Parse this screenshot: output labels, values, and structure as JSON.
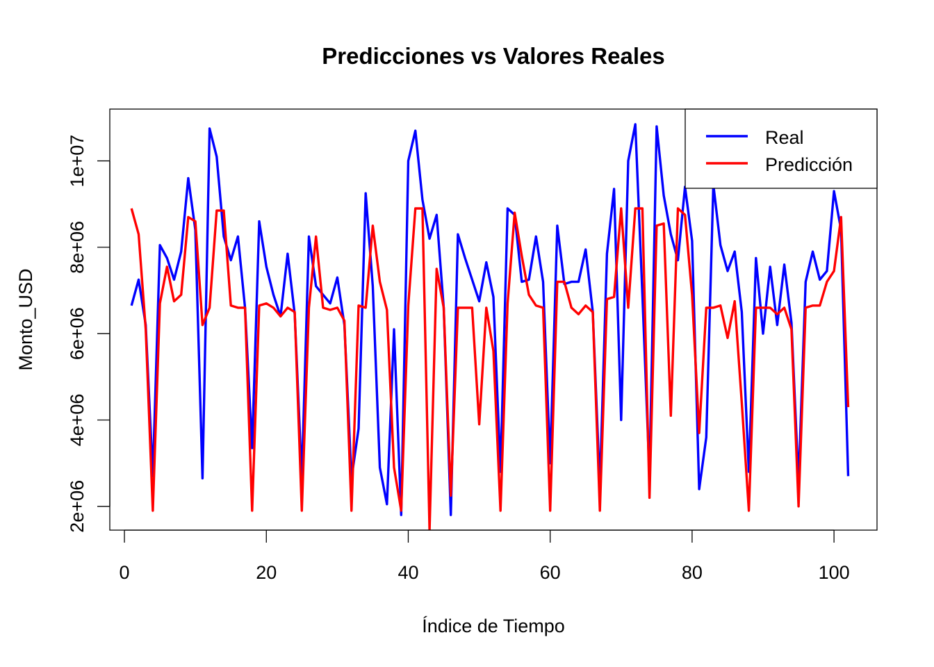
{
  "chart_data": {
    "type": "line",
    "title": "Predicciones vs Valores Reales",
    "xlabel": "Índice de Tiempo",
    "ylabel": "Monto_USD",
    "xlim": [
      -2.06,
      106.06
    ],
    "ylim": [
      1450000,
      11200000
    ],
    "x_ticks": [
      0,
      20,
      40,
      60,
      80,
      100
    ],
    "x_tick_labels": [
      "0",
      "20",
      "40",
      "60",
      "80",
      "100"
    ],
    "y_ticks": [
      2000000,
      4000000,
      6000000,
      8000000,
      10000000
    ],
    "y_tick_labels": [
      "2e+06",
      "4e+06",
      "6e+06",
      "8e+06",
      "1e+07"
    ],
    "legend_position": "top-right",
    "grid": false,
    "x": [
      1,
      2,
      3,
      4,
      5,
      6,
      7,
      8,
      9,
      10,
      11,
      12,
      13,
      14,
      15,
      16,
      17,
      18,
      19,
      20,
      21,
      22,
      23,
      24,
      25,
      26,
      27,
      28,
      29,
      30,
      31,
      32,
      33,
      34,
      35,
      36,
      37,
      38,
      39,
      40,
      41,
      42,
      43,
      44,
      45,
      46,
      47,
      48,
      49,
      50,
      51,
      52,
      53,
      54,
      55,
      56,
      57,
      58,
      59,
      60,
      61,
      62,
      63,
      64,
      65,
      66,
      67,
      68,
      69,
      70,
      71,
      72,
      73,
      74,
      75,
      76,
      77,
      78,
      79,
      80,
      81,
      82,
      83,
      84,
      85,
      86,
      87,
      88,
      89,
      90,
      91,
      92,
      93,
      94,
      95,
      96,
      97,
      98,
      99,
      100,
      101,
      102
    ],
    "series": [
      {
        "name": "Real",
        "color": "#0000FF",
        "values": [
          6650000,
          7250000,
          6200000,
          2700000,
          8050000,
          7750000,
          7250000,
          7900000,
          9600000,
          8400000,
          2650000,
          10750000,
          10100000,
          8250000,
          7700000,
          8250000,
          6600000,
          3350000,
          8600000,
          7550000,
          6900000,
          6400000,
          7850000,
          6450000,
          2650000,
          8250000,
          7100000,
          6900000,
          6700000,
          7300000,
          6200000,
          2650000,
          3800000,
          9250000,
          7100000,
          2900000,
          2050000,
          6100000,
          1800000,
          10000000,
          10700000,
          9100000,
          8200000,
          8750000,
          6600000,
          1800000,
          8300000,
          7750000,
          7250000,
          6750000,
          7650000,
          6850000,
          2800000,
          8900000,
          8750000,
          7200000,
          7250000,
          8250000,
          7200000,
          3000000,
          8500000,
          7150000,
          7200000,
          7200000,
          7950000,
          6500000,
          2450000,
          7850000,
          9350000,
          4000000,
          10000000,
          10850000,
          6900000,
          2700000,
          10800000,
          9200000,
          8300000,
          7700000,
          9400000,
          8150000,
          2400000,
          3600000,
          9450000,
          8050000,
          7450000,
          7900000,
          6500000,
          2800000,
          7750000,
          6000000,
          7550000,
          6200000,
          7600000,
          6250000,
          2550000,
          7200000,
          7900000,
          7250000,
          7450000,
          9300000,
          8400000,
          2700000
        ]
      },
      {
        "name": "Predicción",
        "color": "#FF0000",
        "values": [
          8900000,
          8300000,
          6100000,
          1900000,
          6700000,
          7550000,
          6750000,
          6900000,
          8700000,
          8600000,
          6200000,
          6600000,
          8850000,
          8850000,
          6650000,
          6600000,
          6600000,
          1900000,
          6650000,
          6700000,
          6600000,
          6400000,
          6600000,
          6500000,
          1900000,
          6600000,
          8250000,
          6600000,
          6550000,
          6600000,
          6300000,
          1900000,
          6650000,
          6600000,
          8500000,
          7200000,
          6550000,
          2900000,
          1900000,
          6650000,
          8900000,
          8900000,
          1450000,
          7500000,
          6600000,
          2250000,
          6600000,
          6600000,
          6600000,
          3900000,
          6600000,
          5600000,
          1900000,
          6700000,
          8800000,
          7800000,
          6900000,
          6650000,
          6600000,
          1900000,
          7200000,
          7200000,
          6600000,
          6450000,
          6650000,
          6500000,
          1900000,
          6800000,
          6850000,
          8900000,
          6600000,
          8900000,
          8900000,
          2200000,
          8500000,
          8550000,
          4100000,
          8900000,
          8750000,
          6900000,
          3700000,
          6600000,
          6600000,
          6650000,
          5900000,
          6750000,
          4400000,
          1900000,
          6600000,
          6600000,
          6600000,
          6450000,
          6600000,
          6100000,
          2000000,
          6600000,
          6650000,
          6650000,
          7200000,
          7450000,
          8700000,
          4300000
        ]
      }
    ]
  }
}
